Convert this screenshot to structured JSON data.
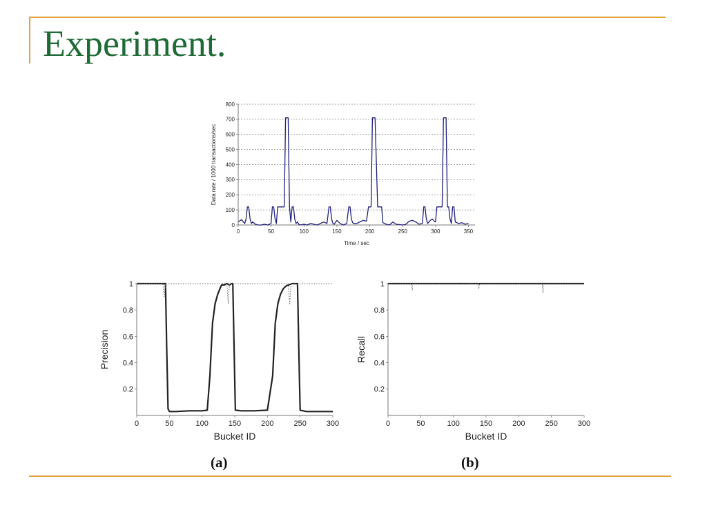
{
  "slide": {
    "title": "Experiment."
  },
  "colors": {
    "accent_rule": "#e0a33a",
    "title_text": "#1e6a35",
    "rate_line": "#1f1f7a",
    "pr_line": "#222222"
  },
  "labels": {
    "a": "(a)",
    "b": "(b)"
  },
  "chart_data": [
    {
      "type": "line",
      "ylabel": "Data rate / 1000 transactions/sec",
      "xlabel": "Time / sec",
      "xlim": [
        0,
        360
      ],
      "ylim": [
        0,
        800
      ],
      "xticks": [
        0,
        50,
        100,
        150,
        200,
        250,
        300,
        350
      ],
      "yticks": [
        0,
        100,
        200,
        300,
        400,
        500,
        600,
        700,
        800
      ],
      "grid": "horizontal dotted",
      "series": [
        {
          "x": [
            0,
            5,
            10,
            12,
            14,
            16,
            18,
            20,
            22,
            26,
            30,
            35,
            40,
            45,
            50,
            52,
            54,
            56,
            58,
            60,
            62,
            64,
            66,
            68,
            70,
            72,
            74,
            76,
            78,
            80,
            82,
            84,
            86,
            88,
            90,
            92,
            94,
            100,
            105,
            110,
            120,
            130,
            135,
            138,
            140,
            142,
            144,
            146,
            150,
            155,
            160,
            165,
            168,
            170,
            172,
            174,
            176,
            180,
            185,
            190,
            195,
            198,
            200,
            202,
            204,
            206,
            208,
            212,
            214,
            216,
            218,
            220,
            225,
            230,
            235,
            240,
            250,
            255,
            260,
            265,
            270,
            275,
            280,
            282,
            284,
            286,
            288,
            290,
            292,
            295,
            298,
            300,
            302,
            304,
            306,
            308,
            310,
            312,
            316,
            318,
            320,
            322,
            324,
            326,
            328,
            330,
            335,
            340,
            345,
            350
          ],
          "y": [
            20,
            35,
            10,
            40,
            120,
            120,
            40,
            10,
            20,
            5,
            0,
            0,
            5,
            0,
            10,
            120,
            120,
            40,
            10,
            120,
            120,
            120,
            120,
            120,
            120,
            710,
            710,
            710,
            120,
            20,
            120,
            120,
            40,
            10,
            20,
            5,
            0,
            5,
            0,
            10,
            0,
            20,
            10,
            120,
            120,
            40,
            10,
            5,
            30,
            10,
            0,
            10,
            120,
            120,
            40,
            15,
            10,
            10,
            20,
            30,
            25,
            120,
            120,
            120,
            710,
            710,
            710,
            120,
            120,
            120,
            120,
            15,
            5,
            0,
            20,
            5,
            0,
            5,
            25,
            30,
            20,
            5,
            10,
            120,
            120,
            40,
            10,
            20,
            30,
            40,
            25,
            20,
            120,
            120,
            120,
            120,
            120,
            710,
            710,
            120,
            120,
            40,
            10,
            120,
            120,
            20,
            10,
            15,
            5,
            10
          ]
        }
      ]
    },
    {
      "type": "line",
      "ylabel": "Precision",
      "xlabel": "Bucket ID",
      "xlim": [
        0,
        300
      ],
      "ylim": [
        0,
        1
      ],
      "xticks": [
        0,
        50,
        100,
        150,
        200,
        250,
        300
      ],
      "yticks": [
        0.2,
        0.4,
        0.6,
        0.8,
        1
      ],
      "series": [
        {
          "style": "solid",
          "x": [
            0,
            44,
            46,
            48,
            50,
            60,
            80,
            100,
            108,
            112,
            116,
            120,
            124,
            128,
            130,
            134,
            138,
            142,
            145,
            147,
            149,
            151,
            160,
            180,
            200,
            208,
            212,
            216,
            220,
            224,
            228,
            232,
            238,
            242,
            246,
            248,
            250,
            260,
            280,
            300
          ],
          "y": [
            1,
            1,
            0.5,
            0.05,
            0.03,
            0.03,
            0.035,
            0.035,
            0.04,
            0.3,
            0.7,
            0.85,
            0.92,
            0.97,
            0.99,
            0.99,
            1.0,
            0.99,
            1.0,
            1.0,
            0.5,
            0.04,
            0.035,
            0.035,
            0.04,
            0.3,
            0.7,
            0.85,
            0.92,
            0.96,
            0.98,
            0.99,
            1.0,
            1.0,
            1.0,
            0.5,
            0.04,
            0.03,
            0.03,
            0.03
          ]
        },
        {
          "style": "dotted",
          "x": [
            0,
            40,
            42,
            44,
            46,
            130,
            138,
            140,
            142,
            228,
            232,
            234,
            236,
            240,
            300
          ],
          "y": [
            1,
            1,
            0.9,
            1,
            1,
            1,
            1,
            0.85,
            1,
            1,
            1,
            0.84,
            1,
            1,
            1
          ]
        }
      ]
    },
    {
      "type": "line",
      "ylabel": "Recall",
      "xlabel": "Bucket ID",
      "xlim": [
        0,
        300
      ],
      "ylim": [
        0,
        1
      ],
      "xticks": [
        0,
        50,
        100,
        150,
        200,
        250,
        300
      ],
      "yticks": [
        0.2,
        0.4,
        0.6,
        0.8,
        1
      ],
      "series": [
        {
          "style": "solid",
          "x": [
            0,
            300
          ],
          "y": [
            1,
            1
          ]
        },
        {
          "style": "dotted",
          "x": [
            0,
            36,
            37,
            38,
            138,
            139,
            140,
            236,
            237,
            238,
            300
          ],
          "y": [
            1,
            1,
            0.95,
            1,
            1,
            0.96,
            1,
            1,
            0.93,
            1,
            1
          ]
        }
      ]
    }
  ]
}
